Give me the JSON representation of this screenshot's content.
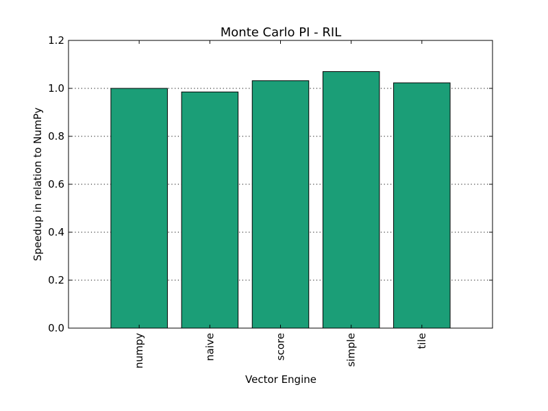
{
  "chart_data": {
    "type": "bar",
    "title": "Monte Carlo PI - RIL",
    "xlabel": "Vector Engine",
    "ylabel": "Speedup in relation to NumPy",
    "categories": [
      "numpy",
      "naive",
      "score",
      "simple",
      "tile"
    ],
    "values": [
      1.0,
      0.985,
      1.032,
      1.07,
      1.023
    ],
    "ylim": [
      0,
      1.2
    ],
    "yticks": [
      "0.0",
      "0.2",
      "0.4",
      "0.6",
      "0.8",
      "1.0",
      "1.2"
    ],
    "grid": "y-dotted",
    "legend": "none",
    "bar_color": "#1b9e77"
  }
}
